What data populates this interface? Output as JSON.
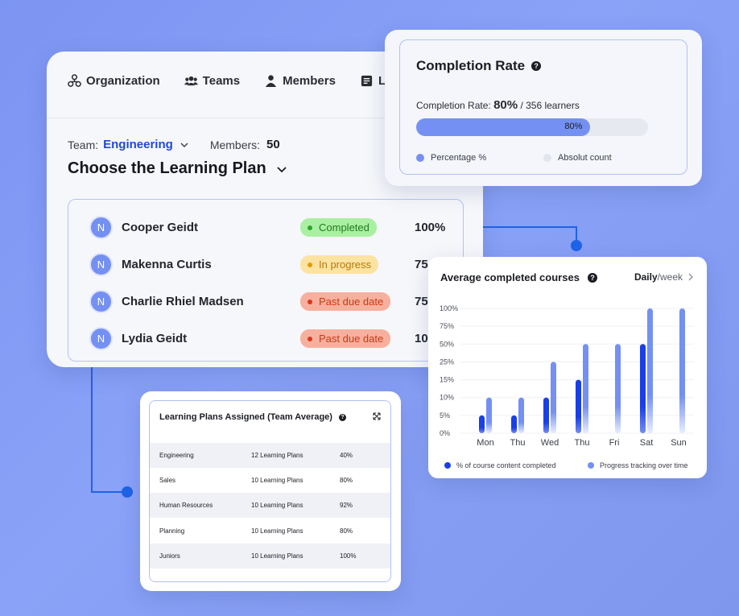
{
  "main": {
    "tabs": [
      {
        "label": "Organization",
        "icon": "organization-icon"
      },
      {
        "label": "Teams",
        "icon": "teams-icon"
      },
      {
        "label": "Members",
        "icon": "members-icon"
      },
      {
        "label": "Le",
        "icon": "learning-icon"
      }
    ],
    "team_label": "Team:",
    "team_value": "Engineering",
    "members_label": "Members:",
    "members_value": "50",
    "plan_title": "Choose the Learning Plan",
    "learners": [
      {
        "avatar": "N",
        "name": "Cooper Geidt",
        "status": "Completed",
        "status_type": "completed",
        "percent": "100%"
      },
      {
        "avatar": "N",
        "name": "Makenna Curtis",
        "status": "In progress",
        "status_type": "progress",
        "percent": "75"
      },
      {
        "avatar": "N",
        "name": "Charlie Rhiel Madsen",
        "status": "Past due date",
        "status_type": "pastdue",
        "percent": "75"
      },
      {
        "avatar": "N",
        "name": "Lydia Geidt",
        "status": "Past due date",
        "status_type": "pastdue",
        "percent": "10"
      }
    ]
  },
  "completion": {
    "title": "Completion Rate",
    "rate_label": "Completion Rate:",
    "rate_value": "80%",
    "learners_text": "/ 356 learners",
    "progress": 0.8,
    "bar_label": "80%",
    "legend": [
      {
        "label": "Percentage %",
        "color": "#7490f2"
      },
      {
        "label": "Absolut count",
        "color": "#e3e5ec"
      }
    ]
  },
  "avg": {
    "title": "Average completed courses",
    "period_main": "Daily",
    "period_sub": "/week",
    "legend": [
      {
        "label": "% of course content completed",
        "color": "#1a3fe6"
      },
      {
        "label": "Progress tracking over time",
        "color": "#7490f2"
      }
    ]
  },
  "chart_data": {
    "type": "bar",
    "categories": [
      "Mon",
      "Thu",
      "Wed",
      "Thu",
      "Fri",
      "Sat",
      "Sun"
    ],
    "y_ticks": [
      "0%",
      "5%",
      "10%",
      "15%",
      "25%",
      "50%",
      "75%",
      "100%"
    ],
    "series": [
      {
        "name": "% of course content completed",
        "color": "#1a3fe6",
        "values": [
          5,
          5,
          10,
          15,
          null,
          50,
          null
        ]
      },
      {
        "name": "Progress tracking over time",
        "color": "#7490f2",
        "values": [
          10,
          10,
          25,
          50,
          50,
          100,
          100
        ]
      }
    ],
    "ylabel": "",
    "xlabel": ""
  },
  "plans": {
    "title": "Learning Plans Assigned (Team Average)",
    "rows": [
      {
        "team": "Engineering",
        "plans": "12 Learning Plans",
        "avg": "40%"
      },
      {
        "team": "Sales",
        "plans": "10 Learning Plans",
        "avg": "80%"
      },
      {
        "team": "Human Resources",
        "plans": "10 Learning Plans",
        "avg": "92%"
      },
      {
        "team": "Planning",
        "plans": "10 Learning Plans",
        "avg": "80%"
      },
      {
        "team": "Juniors",
        "plans": "10 Learning Plans",
        "avg": "100%"
      }
    ]
  }
}
